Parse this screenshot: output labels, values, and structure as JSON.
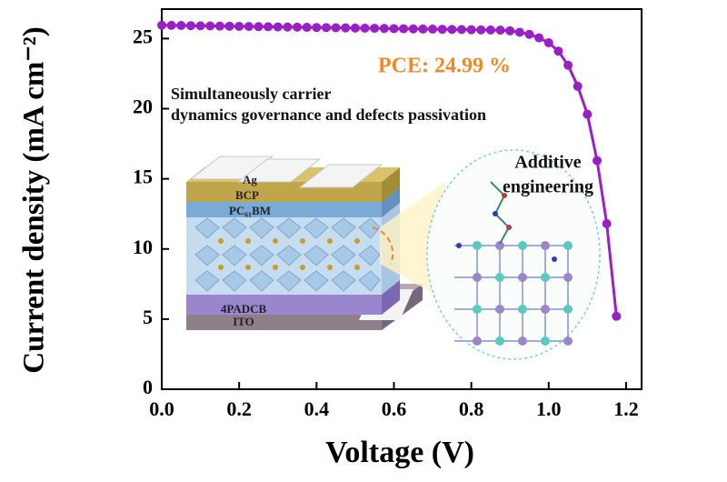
{
  "chart_data": {
    "type": "line",
    "x_label": "Voltage (V)",
    "y_label": "Current density (mA cm⁻²)",
    "annotations": [
      "PCE: 24.99 %",
      "Simultaneously carrier",
      "dynamics governance and defects passivation",
      "Additive",
      "engineering"
    ],
    "inset_labels": [
      "Ag",
      "BCP",
      "PC₆₁BM",
      "4PADCB",
      "ITO"
    ],
    "x": [
      0,
      0.025,
      0.05,
      0.075,
      0.1,
      0.125,
      0.15,
      0.175,
      0.2,
      0.225,
      0.25,
      0.275,
      0.3,
      0.325,
      0.35,
      0.375,
      0.4,
      0.425,
      0.45,
      0.475,
      0.5,
      0.525,
      0.55,
      0.575,
      0.6,
      0.625,
      0.65,
      0.675,
      0.7,
      0.725,
      0.75,
      0.775,
      0.8,
      0.825,
      0.85,
      0.875,
      0.9,
      0.925,
      0.95,
      0.975,
      1.0,
      1.025,
      1.05,
      1.075,
      1.1,
      1.125,
      1.15,
      1.175
    ],
    "series": [
      {
        "color": "#9b1fc7",
        "values": [
          25.95,
          25.94,
          25.93,
          25.92,
          25.91,
          25.9,
          25.89,
          25.88,
          25.87,
          25.86,
          25.85,
          25.84,
          25.83,
          25.82,
          25.81,
          25.8,
          25.79,
          25.78,
          25.77,
          25.76,
          25.75,
          25.74,
          25.73,
          25.72,
          25.71,
          25.7,
          25.69,
          25.68,
          25.67,
          25.66,
          25.65,
          25.64,
          25.63,
          25.62,
          25.61,
          25.6,
          25.55,
          25.45,
          25.3,
          25.05,
          24.7,
          24.1,
          23.1,
          21.6,
          19.6,
          16.3,
          11.8,
          5.2
        ]
      }
    ],
    "xlim": [
      0,
      1.24
    ],
    "ylim": [
      0,
      27.1
    ],
    "xticks": [
      {
        "value": 0,
        "label": "0.0"
      },
      0.2,
      0.4,
      0.6,
      0.8,
      {
        "value": 1,
        "label": "1.0"
      },
      1.2
    ],
    "yticks": [
      0,
      5,
      10,
      15,
      20,
      25
    ]
  }
}
